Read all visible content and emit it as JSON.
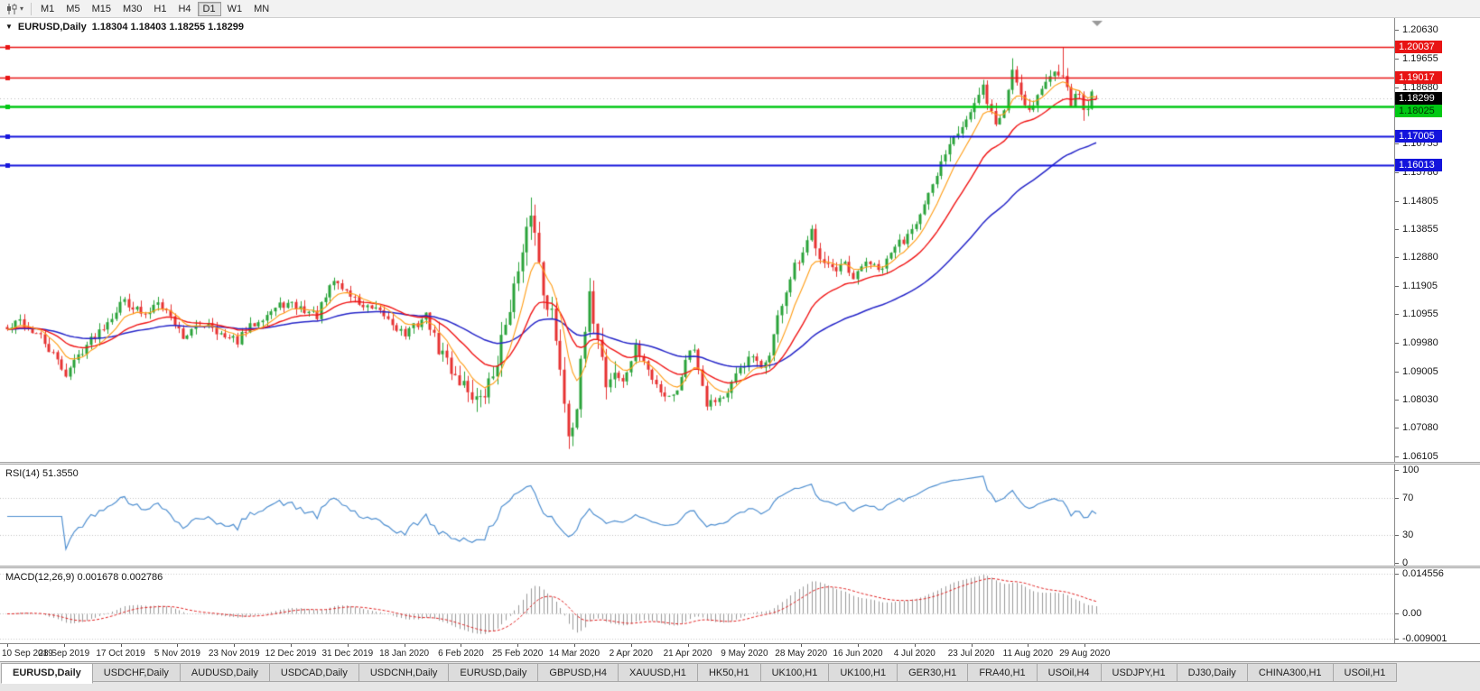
{
  "toolbar": {
    "chart_type_tooltip": "chart-type",
    "timeframes": [
      {
        "label": "M1",
        "active": false
      },
      {
        "label": "M5",
        "active": false
      },
      {
        "label": "M15",
        "active": false
      },
      {
        "label": "M30",
        "active": false
      },
      {
        "label": "H1",
        "active": false
      },
      {
        "label": "H4",
        "active": false
      },
      {
        "label": "D1",
        "active": true
      },
      {
        "label": "W1",
        "active": false
      },
      {
        "label": "MN",
        "active": false
      }
    ]
  },
  "chart": {
    "symbol": "EURUSD,Daily",
    "ohlc": "1.18304 1.18403 1.18255 1.18299",
    "axis_labels": [
      "1.20630",
      "1.19655",
      "1.18680",
      "1.17730",
      "1.16755",
      "1.15780",
      "1.14805",
      "1.13855",
      "1.12880",
      "1.11905",
      "1.10955",
      "1.09980",
      "1.09005",
      "1.08030",
      "1.07080",
      "1.06105"
    ],
    "current_price": {
      "label": "1.18299",
      "value": 1.18299,
      "bg": "#000000",
      "fg": "#ffffff"
    },
    "hlines": [
      {
        "label": "1.20037",
        "value": 1.20037,
        "color": "#e81414",
        "text_color": "#ffffff",
        "thickness": 1.5
      },
      {
        "label": "1.19017",
        "value": 1.19017,
        "color": "#e81414",
        "text_color": "#ffffff",
        "thickness": 1.5
      },
      {
        "label": "1.18025",
        "value": 1.18025,
        "color": "#00c814",
        "text_color": "#003300",
        "thickness": 2.5
      },
      {
        "label": "1.17005",
        "value": 1.17005,
        "color": "#1414dc",
        "text_color": "#ffffff",
        "thickness": 2
      },
      {
        "label": "1.16013",
        "value": 1.16013,
        "color": "#1414dc",
        "text_color": "#ffffff",
        "thickness": 2
      }
    ],
    "dates": [
      "10 Sep 2019",
      "28 Sep 2019",
      "17 Oct 2019",
      "5 Nov 2019",
      "23 Nov 2019",
      "12 Dec 2019",
      "31 Dec 2019",
      "18 Jan 2020",
      "6 Feb 2020",
      "25 Feb 2020",
      "14 Mar 2020",
      "2 Apr 2020",
      "21 Apr 2020",
      "9 May 2020",
      "28 May 2020",
      "16 Jun 2020",
      "4 Jul 2020",
      "23 Jul 2020",
      "11 Aug 2020",
      "29 Aug 2020"
    ]
  },
  "rsi": {
    "label": "RSI(14) 51.3550",
    "line_color": "#4f8fd0",
    "levels": [
      {
        "label": "100",
        "value": 100,
        "dotted": false
      },
      {
        "label": "70",
        "value": 70,
        "dotted": true
      },
      {
        "label": "30",
        "value": 30,
        "dotted": true
      },
      {
        "label": "0",
        "value": 0,
        "dotted": false
      }
    ]
  },
  "macd": {
    "label": "MACD(12,26,9) 0.001678 0.002786",
    "histogram_color": "#9a9a9a",
    "signal_color": "#e02020",
    "levels": [
      {
        "label": "0.014556",
        "value": 0.014556
      },
      {
        "label": "0.00",
        "value": 0
      },
      {
        "label": "-0.009001",
        "value": -0.009001
      }
    ]
  },
  "tabs": [
    {
      "label": "EURUSD,Daily",
      "active": true
    },
    {
      "label": "USDCHF,Daily",
      "active": false
    },
    {
      "label": "AUDUSD,Daily",
      "active": false
    },
    {
      "label": "USDCAD,Daily",
      "active": false
    },
    {
      "label": "USDCNH,Daily",
      "active": false
    },
    {
      "label": "EURUSD,Daily",
      "active": false
    },
    {
      "label": "GBPUSD,H4",
      "active": false
    },
    {
      "label": "XAUUSD,H1",
      "active": false
    },
    {
      "label": "HK50,H1",
      "active": false
    },
    {
      "label": "UK100,H1",
      "active": false
    },
    {
      "label": "UK100,H1",
      "active": false
    },
    {
      "label": "GER30,H1",
      "active": false
    },
    {
      "label": "FRA40,H1",
      "active": false
    },
    {
      "label": "USOil,H4",
      "active": false
    },
    {
      "label": "USDJPY,H1",
      "active": false
    },
    {
      "label": "DJ30,Daily",
      "active": false
    },
    {
      "label": "CHINA300,H1",
      "active": false
    },
    {
      "label": "USOil,H1",
      "active": false
    }
  ],
  "chart_data": {
    "type": "candlestick",
    "symbol": "EURUSD",
    "timeframe": "Daily",
    "title": "EURUSD,Daily",
    "ylim": [
      1.06105,
      1.2063
    ],
    "n_bars": 261,
    "seed": 42,
    "up_color": "#2aa33a",
    "down_color": "#e63232",
    "rsi_period": 14,
    "ma_periods": {
      "fast": 8,
      "medium": 21,
      "slow": 55
    },
    "ma_colors": {
      "fast": "#ff9c14",
      "medium": "#f01414",
      "slow": "#2424c8"
    },
    "macd_params": {
      "fast": 12,
      "slow": 26,
      "signal": 9
    },
    "close_anchors": [
      [
        0,
        1.104
      ],
      [
        3,
        1.1072
      ],
      [
        8,
        1.1015
      ],
      [
        14,
        1.0892
      ],
      [
        18,
        1.0975
      ],
      [
        22,
        1.104
      ],
      [
        28,
        1.1145
      ],
      [
        33,
        1.1085
      ],
      [
        36,
        1.115
      ],
      [
        42,
        1.102
      ],
      [
        48,
        1.107
      ],
      [
        52,
        1.101
      ],
      [
        55,
        1.1005
      ],
      [
        60,
        1.108
      ],
      [
        66,
        1.113
      ],
      [
        70,
        1.1115
      ],
      [
        74,
        1.109
      ],
      [
        78,
        1.121
      ],
      [
        82,
        1.116
      ],
      [
        85,
        1.112
      ],
      [
        90,
        1.109
      ],
      [
        95,
        1.1025
      ],
      [
        100,
        1.109
      ],
      [
        103,
        1.098
      ],
      [
        106,
        1.091
      ],
      [
        110,
        1.084
      ],
      [
        113,
        1.079
      ],
      [
        116,
        1.089
      ],
      [
        118,
        1.1
      ],
      [
        120,
        1.1135
      ],
      [
        123,
        1.128
      ],
      [
        125,
        1.145
      ],
      [
        126,
        1.1365
      ],
      [
        128,
        1.118
      ],
      [
        130,
        1.11
      ],
      [
        131,
        1.099
      ],
      [
        132,
        1.092
      ],
      [
        134,
        1.069
      ],
      [
        136,
        1.079
      ],
      [
        138,
        1.103
      ],
      [
        139,
        1.114
      ],
      [
        141,
        1.103
      ],
      [
        143,
        1.086
      ],
      [
        145,
        1.09
      ],
      [
        147,
        1.086
      ],
      [
        150,
        1.098
      ],
      [
        152,
        1.0935
      ],
      [
        154,
        1.087
      ],
      [
        157,
        1.082
      ],
      [
        160,
        1.083
      ],
      [
        162,
        1.095
      ],
      [
        164,
        1.098
      ],
      [
        167,
        1.0795
      ],
      [
        170,
        1.081
      ],
      [
        172,
        1.082
      ],
      [
        175,
        1.0915
      ],
      [
        178,
        1.095
      ],
      [
        180,
        1.09
      ],
      [
        182,
        1.0965
      ],
      [
        185,
        1.1135
      ],
      [
        188,
        1.125
      ],
      [
        190,
        1.129
      ],
      [
        192,
        1.1375
      ],
      [
        194,
        1.13
      ],
      [
        196,
        1.1265
      ],
      [
        198,
        1.123
      ],
      [
        200,
        1.126
      ],
      [
        202,
        1.12
      ],
      [
        205,
        1.128
      ],
      [
        208,
        1.124
      ],
      [
        210,
        1.127
      ],
      [
        212,
        1.133
      ],
      [
        214,
        1.1345
      ],
      [
        216,
        1.14
      ],
      [
        218,
        1.143
      ],
      [
        221,
        1.1525
      ],
      [
        224,
        1.165
      ],
      [
        226,
        1.1715
      ],
      [
        228,
        1.174
      ],
      [
        230,
        1.178
      ],
      [
        232,
        1.183
      ],
      [
        233,
        1.1865
      ],
      [
        235,
        1.178
      ],
      [
        236,
        1.174
      ],
      [
        238,
        1.179
      ],
      [
        240,
        1.193
      ],
      [
        242,
        1.185
      ],
      [
        244,
        1.179
      ],
      [
        246,
        1.184
      ],
      [
        248,
        1.188
      ],
      [
        250,
        1.1935
      ],
      [
        252,
        1.192
      ],
      [
        253,
        1.185
      ],
      [
        254,
        1.1817
      ],
      [
        255,
        1.183
      ],
      [
        256,
        1.1845
      ],
      [
        257,
        1.179
      ],
      [
        258,
        1.181
      ],
      [
        259,
        1.184
      ],
      [
        260,
        1.18299
      ]
    ],
    "overrides": {
      "14": {
        "l": 1.0879
      },
      "113": {
        "l": 1.0778
      },
      "125": {
        "h": 1.1492
      },
      "134": {
        "l": 1.0636
      },
      "240": {
        "h": 1.1966
      },
      "252": {
        "h": 1.2003
      },
      "257": {
        "l": 1.1753
      },
      "260": {
        "o": 1.18304,
        "h": 1.18403,
        "l": 1.18255,
        "c": 1.18299
      }
    }
  }
}
